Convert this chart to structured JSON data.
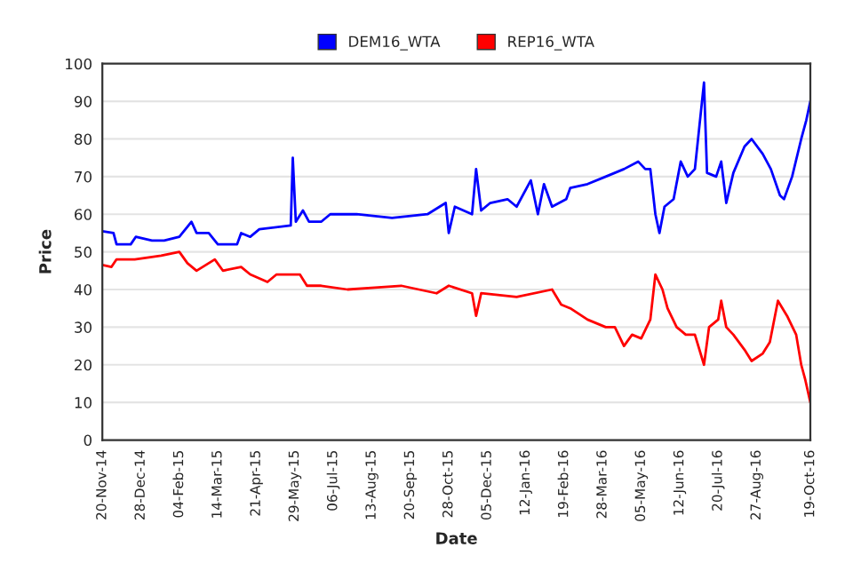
{
  "chart_data": {
    "type": "line",
    "xlabel": "Date",
    "ylabel": "Price",
    "series": [
      {
        "name": "DEM16_WTA",
        "color": "#0000ff",
        "x": [
          "2014-11-20",
          "2014-12-01",
          "2014-12-04",
          "2014-12-18",
          "2014-12-23",
          "2015-01-08",
          "2015-01-20",
          "2015-02-04",
          "2015-02-16",
          "2015-02-21",
          "2015-03-05",
          "2015-03-14",
          "2015-04-02",
          "2015-04-06",
          "2015-04-15",
          "2015-04-24",
          "2015-05-25",
          "2015-05-27",
          "2015-05-30",
          "2015-06-06",
          "2015-06-12",
          "2015-06-24",
          "2015-07-03",
          "2015-07-29",
          "2015-09-02",
          "2015-10-07",
          "2015-10-25",
          "2015-10-28",
          "2015-11-03",
          "2015-11-20",
          "2015-11-24",
          "2015-11-29",
          "2015-12-08",
          "2015-12-25",
          "2016-01-03",
          "2016-01-17",
          "2016-01-24",
          "2016-01-30",
          "2016-02-07",
          "2016-02-21",
          "2016-02-25",
          "2016-03-13",
          "2016-03-31",
          "2016-04-18",
          "2016-05-02",
          "2016-05-09",
          "2016-05-14",
          "2016-05-19",
          "2016-05-23",
          "2016-05-28",
          "2016-06-06",
          "2016-06-13",
          "2016-06-20",
          "2016-06-27",
          "2016-07-06",
          "2016-07-09",
          "2016-07-18",
          "2016-07-23",
          "2016-07-28",
          "2016-08-04",
          "2016-08-15",
          "2016-08-22",
          "2016-09-02",
          "2016-09-10",
          "2016-09-19",
          "2016-09-23",
          "2016-10-01",
          "2016-10-10",
          "2016-10-15",
          "2016-10-19"
        ],
        "values": [
          55.5,
          55,
          52,
          52,
          54,
          53,
          53,
          54,
          58,
          55,
          55,
          52,
          52,
          55,
          54,
          56,
          57,
          75,
          58,
          61,
          58,
          58,
          60,
          60,
          59,
          60,
          63,
          55,
          62,
          60,
          72,
          61,
          63,
          64,
          62,
          69,
          60,
          68,
          62,
          64,
          67,
          68,
          70,
          72,
          74,
          72,
          72,
          60,
          55,
          62,
          64,
          74,
          70,
          72,
          95,
          71,
          70,
          74,
          63,
          71,
          78,
          80,
          76,
          72,
          65,
          64,
          70,
          80,
          85,
          90
        ]
      },
      {
        "name": "REP16_WTA",
        "color": "#ff0000",
        "x": [
          "2014-11-20",
          "2014-11-29",
          "2014-12-04",
          "2014-12-22",
          "2015-01-17",
          "2015-02-04",
          "2015-02-12",
          "2015-02-21",
          "2015-03-11",
          "2015-03-19",
          "2015-04-06",
          "2015-04-15",
          "2015-05-02",
          "2015-05-11",
          "2015-06-03",
          "2015-06-10",
          "2015-06-24",
          "2015-07-20",
          "2015-08-16",
          "2015-09-11",
          "2015-10-16",
          "2015-10-28",
          "2015-11-20",
          "2015-11-24",
          "2015-11-29",
          "2016-01-03",
          "2016-02-07",
          "2016-02-16",
          "2016-02-25",
          "2016-03-13",
          "2016-03-31",
          "2016-04-09",
          "2016-04-18",
          "2016-04-26",
          "2016-05-05",
          "2016-05-14",
          "2016-05-19",
          "2016-05-26",
          "2016-05-31",
          "2016-06-09",
          "2016-06-18",
          "2016-06-27",
          "2016-07-06",
          "2016-07-11",
          "2016-07-20",
          "2016-07-23",
          "2016-07-28",
          "2016-08-04",
          "2016-08-15",
          "2016-08-22",
          "2016-09-02",
          "2016-09-09",
          "2016-09-17",
          "2016-09-26",
          "2016-10-05",
          "2016-10-10",
          "2016-10-14",
          "2016-10-19"
        ],
        "values": [
          46.5,
          46,
          48,
          48,
          49,
          50,
          47,
          45,
          48,
          45,
          46,
          44,
          42,
          44,
          44,
          41,
          41,
          40,
          40.5,
          41,
          39,
          41,
          39,
          33,
          39,
          38,
          40,
          36,
          35,
          32,
          30,
          30,
          25,
          28,
          27,
          32,
          44,
          40,
          35,
          30,
          28,
          28,
          20,
          30,
          32,
          37,
          30,
          28,
          24,
          21,
          23,
          26,
          37,
          33,
          28,
          20,
          16,
          10
        ]
      }
    ],
    "xlim": [
      "2014-11-20",
      "2016-10-19"
    ],
    "xticks": [
      {
        "value": "2014-11-20",
        "label": "20-Nov-14"
      },
      {
        "value": "2014-12-28",
        "label": "28-Dec-14"
      },
      {
        "value": "2015-02-04",
        "label": "04-Feb-15"
      },
      {
        "value": "2015-03-14",
        "label": "14-Mar-15"
      },
      {
        "value": "2015-04-21",
        "label": "21-Apr-15"
      },
      {
        "value": "2015-05-29",
        "label": "29-May-15"
      },
      {
        "value": "2015-07-06",
        "label": "06-Jul-15"
      },
      {
        "value": "2015-08-13",
        "label": "13-Aug-15"
      },
      {
        "value": "2015-09-20",
        "label": "20-Sep-15"
      },
      {
        "value": "2015-10-28",
        "label": "28-Oct-15"
      },
      {
        "value": "2015-12-05",
        "label": "05-Dec-15"
      },
      {
        "value": "2016-01-12",
        "label": "12-Jan-16"
      },
      {
        "value": "2016-02-19",
        "label": "19-Feb-16"
      },
      {
        "value": "2016-03-28",
        "label": "28-Mar-16"
      },
      {
        "value": "2016-05-05",
        "label": "05-May-16"
      },
      {
        "value": "2016-06-12",
        "label": "12-Jun-16"
      },
      {
        "value": "2016-07-20",
        "label": "20-Jul-16"
      },
      {
        "value": "2016-08-27",
        "label": "27-Aug-16"
      },
      {
        "value": "2016-10-19",
        "label": "19-Oct-16"
      }
    ],
    "ylim": [
      0,
      100
    ],
    "yticks": [
      0,
      10,
      20,
      30,
      40,
      50,
      60,
      70,
      80,
      90,
      100
    ],
    "grid": "y",
    "legend": "top"
  }
}
